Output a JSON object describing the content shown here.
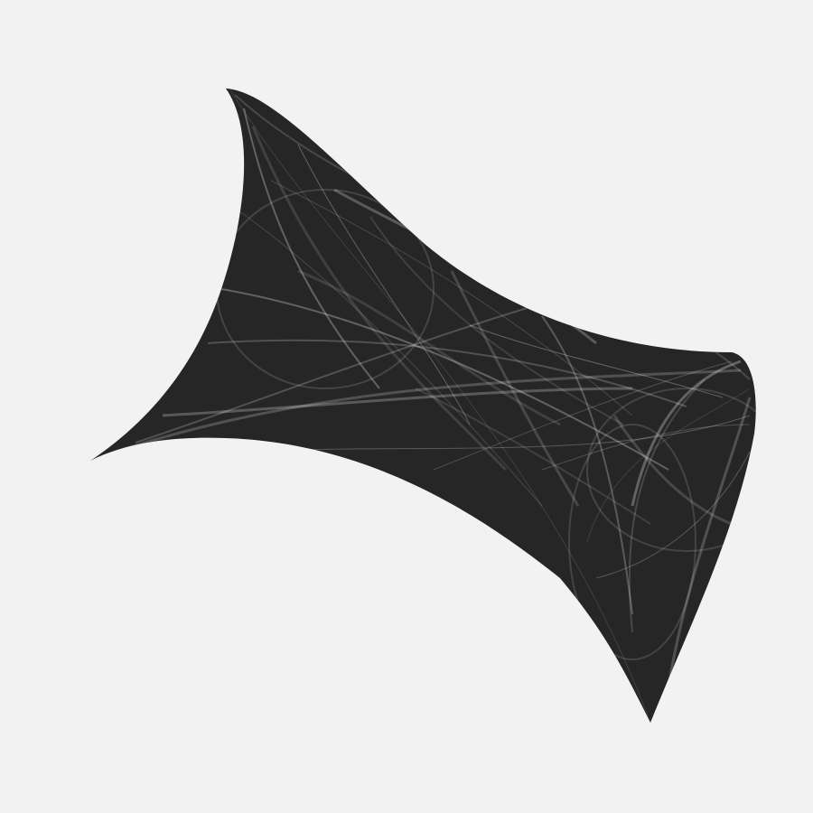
{
  "artwork": {
    "background_color": "#f2f2f2",
    "shape_fill_color": "#262626",
    "line_color": "#ffffff"
  }
}
